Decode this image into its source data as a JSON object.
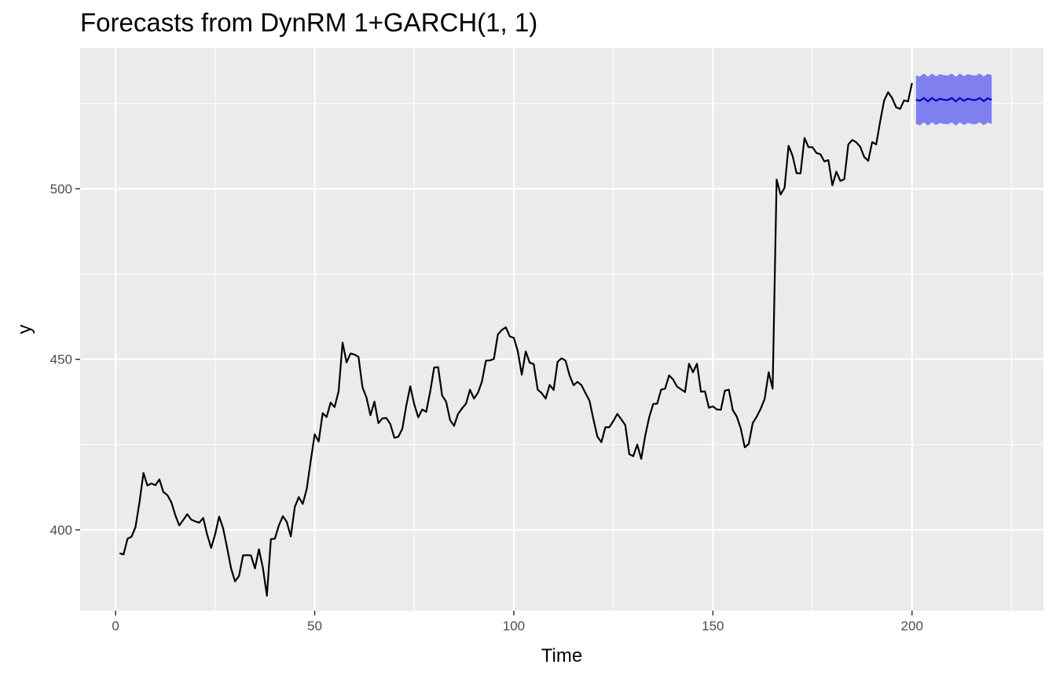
{
  "chart_data": {
    "type": "line",
    "title": "Forecasts from DynRM 1+GARCH(1, 1)",
    "xlabel": "Time",
    "ylabel": "y",
    "xlim": [
      -8.9,
      233
    ],
    "ylim": [
      376.3,
      541.3
    ],
    "x_ticks": [
      0,
      50,
      100,
      150,
      200
    ],
    "x_tick_labels": [
      "0",
      "50",
      "100",
      "150",
      "200"
    ],
    "y_ticks": [
      400,
      450,
      500
    ],
    "y_tick_labels": [
      "400",
      "450",
      "500"
    ],
    "grid": true,
    "legend": "none",
    "colors": {
      "panel": "#ebebeb",
      "grid": "#ffffff",
      "series": "#000000",
      "forecast": "#0000cc",
      "interval": "#7f7fef"
    },
    "series": [
      {
        "x_start": 1,
        "values": [
          393.1,
          392.8,
          397.4,
          398.0,
          400.8,
          408.1,
          416.7,
          413.0,
          413.6,
          413.1,
          414.8,
          411.1,
          410.2,
          408.1,
          404.3,
          401.3,
          402.9,
          404.6,
          403.0,
          402.5,
          402.1,
          403.5,
          398.6,
          394.7,
          398.7,
          403.9,
          400.5,
          394.8,
          388.7,
          384.9,
          386.5,
          392.5,
          392.6,
          392.5,
          388.7,
          394.3,
          388.8,
          380.7,
          397.3,
          397.4,
          401.3,
          404.0,
          402.3,
          398.1,
          406.7,
          409.6,
          407.6,
          412.0,
          420.2,
          428.0,
          425.9,
          434.2,
          433.1,
          437.3,
          436.0,
          440.6,
          454.9,
          449.1,
          451.7,
          451.4,
          450.7,
          441.8,
          438.8,
          433.6,
          437.6,
          431.3,
          432.7,
          432.8,
          431.0,
          427.0,
          427.3,
          429.6,
          436.4,
          442.1,
          436.8,
          433.0,
          435.3,
          434.6,
          440.5,
          447.6,
          447.7,
          439.4,
          437.6,
          432.2,
          430.5,
          434.0,
          435.6,
          437.0,
          441.1,
          438.5,
          440.2,
          443.5,
          449.6,
          449.7,
          450.1,
          457.3,
          458.6,
          459.4,
          456.7,
          456.3,
          452.4,
          445.5,
          452.3,
          449.0,
          448.6,
          441.1,
          440.1,
          438.5,
          442.5,
          441.0,
          449.3,
          450.3,
          449.6,
          445.3,
          442.4,
          443.4,
          442.4,
          440.1,
          437.9,
          432.4,
          427.3,
          425.7,
          430.1,
          430.1,
          431.9,
          434.0,
          432.4,
          430.7,
          422.2,
          421.6,
          425.0,
          420.8,
          427.6,
          433.0,
          436.9,
          437.0,
          441.1,
          441.4,
          445.3,
          444.1,
          442.0,
          441.2,
          440.4,
          448.7,
          446.2,
          448.7,
          440.5,
          440.6,
          435.8,
          436.2,
          435.3,
          435.2,
          440.8,
          441.1,
          435.1,
          433.2,
          429.7,
          424.2,
          425.2,
          431.3,
          433.2,
          435.5,
          438.4,
          446.2,
          441.4,
          502.7,
          498.3,
          500.3,
          512.6,
          509.7,
          504.6,
          504.5,
          514.9,
          512.2,
          512.2,
          510.5,
          510.1,
          508.0,
          508.4,
          501.0,
          505.0,
          502.3,
          502.8,
          513.0,
          514.3,
          513.6,
          512.3,
          509.3,
          508.2,
          513.7,
          513.0,
          519.7,
          525.9,
          528.3,
          526.6,
          523.9,
          523.4,
          525.9,
          525.6,
          531.0
        ]
      }
    ],
    "forecast": {
      "x_start": 201,
      "mean": [
        526.1,
        525.8,
        526.6,
        525.6,
        526.6,
        525.8,
        526.4,
        526.1,
        526.0,
        526.6,
        525.6,
        526.6,
        525.8,
        526.4,
        526.1,
        526.0,
        526.6,
        525.7,
        526.5,
        526.1
      ],
      "lower": [
        519.0,
        518.6,
        519.5,
        518.5,
        519.5,
        518.7,
        519.3,
        519.0,
        518.9,
        519.5,
        518.5,
        519.5,
        518.7,
        519.3,
        519.0,
        518.9,
        519.5,
        518.6,
        519.4,
        519.0
      ],
      "upper": [
        533.2,
        532.9,
        533.8,
        532.8,
        533.8,
        533.0,
        533.6,
        533.3,
        533.2,
        533.8,
        532.8,
        533.8,
        533.0,
        533.6,
        533.3,
        533.2,
        533.8,
        532.9,
        533.7,
        533.3
      ]
    }
  }
}
